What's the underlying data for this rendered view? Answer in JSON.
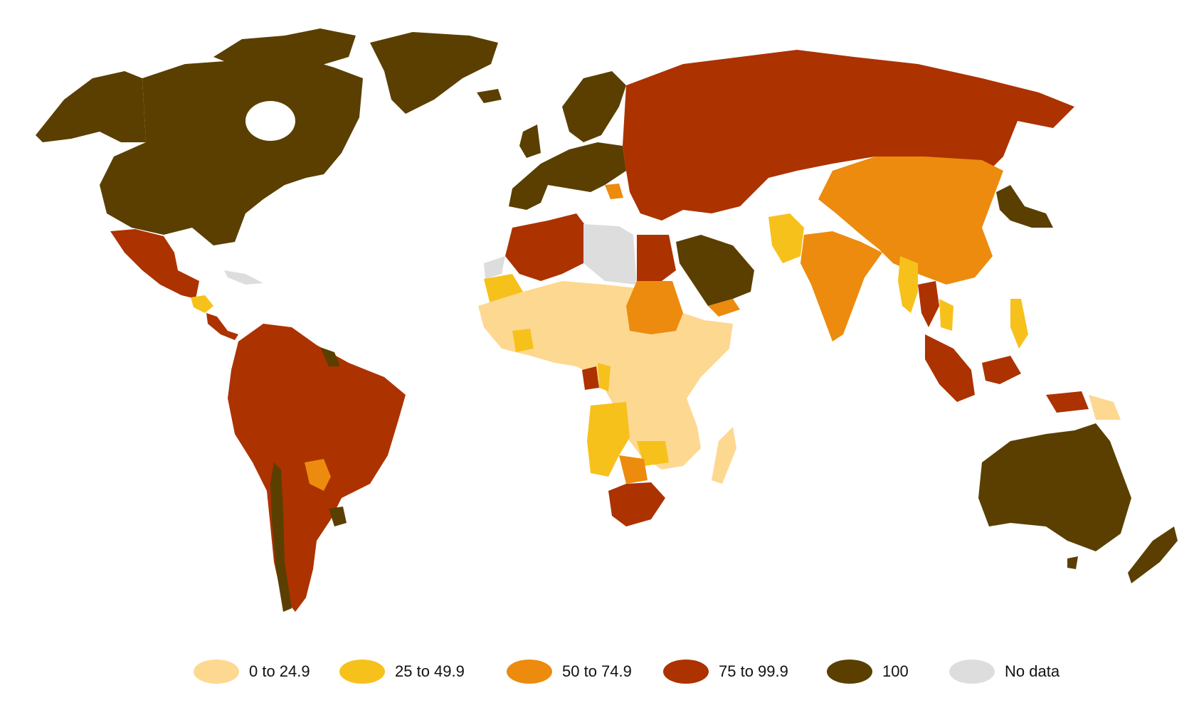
{
  "colors": {
    "c0": "#FDD891",
    "c1": "#F7C11B",
    "c2": "#EC8B0E",
    "c3": "#AC3200",
    "c4": "#5A3F00",
    "nodata": "#DDDDDD"
  },
  "legend": [
    {
      "label": "0 to 24.9",
      "color_key": "c0"
    },
    {
      "label": "25 to 49.9",
      "color_key": "c1"
    },
    {
      "label": "50 to 74.9",
      "color_key": "c2"
    },
    {
      "label": "75 to 99.9",
      "color_key": "c3"
    },
    {
      "label": "100",
      "color_key": "c4"
    },
    {
      "label": "No data",
      "color_key": "nodata"
    }
  ]
}
